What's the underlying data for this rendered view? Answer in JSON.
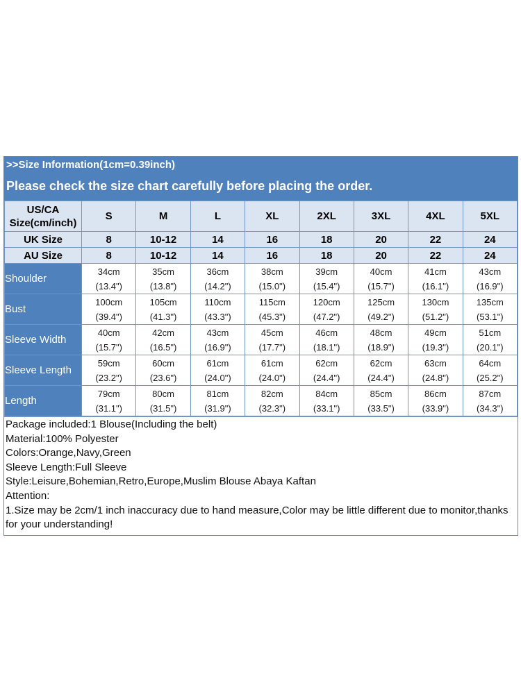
{
  "header": {
    "info_line": ">>Size Information(1cm=0.39inch)",
    "warning_line": "Please check the size chart carefully before placing the order."
  },
  "table": {
    "us_ca_label": "US/CA Size(cm/inch)",
    "sizes": [
      "S",
      "M",
      "L",
      "XL",
      "2XL",
      "3XL",
      "4XL",
      "5XL"
    ],
    "uk": {
      "label": "UK Size",
      "values": [
        "8",
        "10-12",
        "14",
        "16",
        "18",
        "20",
        "22",
        "24"
      ]
    },
    "au": {
      "label": "AU Size",
      "values": [
        "8",
        "10-12",
        "14",
        "16",
        "18",
        "20",
        "22",
        "24"
      ]
    },
    "measurements": [
      {
        "label": "Shoulder",
        "cm": [
          "34cm",
          "35cm",
          "36cm",
          "38cm",
          "39cm",
          "40cm",
          "41cm",
          "43cm"
        ],
        "inch": [
          "(13.4\")",
          "(13.8\")",
          "(14.2\")",
          "(15.0\")",
          "(15.4\")",
          "(15.7\")",
          "(16.1\")",
          "(16.9\")"
        ]
      },
      {
        "label": "Bust",
        "cm": [
          "100cm",
          "105cm",
          "110cm",
          "115cm",
          "120cm",
          "125cm",
          "130cm",
          "135cm"
        ],
        "inch": [
          "(39.4\")",
          "(41.3\")",
          "(43.3\")",
          "(45.3\")",
          "(47.2\")",
          "(49.2\")",
          "(51.2\")",
          "(53.1\")"
        ]
      },
      {
        "label": "Sleeve Width",
        "cm": [
          "40cm",
          "42cm",
          "43cm",
          "45cm",
          "46cm",
          "48cm",
          "49cm",
          "51cm"
        ],
        "inch": [
          "(15.7\")",
          "(16.5\")",
          "(16.9\")",
          "(17.7\")",
          "(18.1\")",
          "(18.9\")",
          "(19.3\")",
          "(20.1\")"
        ]
      },
      {
        "label": "Sleeve Length",
        "cm": [
          "59cm",
          "60cm",
          "61cm",
          "61cm",
          "62cm",
          "62cm",
          "63cm",
          "64cm"
        ],
        "inch": [
          "(23.2\")",
          "(23.6\")",
          "(24.0\")",
          "(24.0\")",
          "(24.4\")",
          "(24.4\")",
          "(24.8\")",
          "(25.2\")"
        ]
      },
      {
        "label": "Length",
        "cm": [
          "79cm",
          "80cm",
          "81cm",
          "82cm",
          "84cm",
          "85cm",
          "86cm",
          "87cm"
        ],
        "inch": [
          "(31.1\")",
          "(31.5\")",
          "(31.9\")",
          "(32.3\")",
          "(33.1\")",
          "(33.5\")",
          "(33.9\")",
          "(34.3\")"
        ]
      }
    ]
  },
  "notes": [
    "Package included:1 Blouse(Including the belt)",
    "Material:100% Polyester",
    "Colors:Orange,Navy,Green",
    "Sleeve Length:Full Sleeve",
    "Style:Leisure,Bohemian,Retro,Europe,Muslim Blouse Abaya Kaftan",
    "Attention:",
    "1.Size may be 2cm/1 inch inaccuracy due to hand measure,Color may be little different due to monitor,thanks for your understanding!"
  ]
}
